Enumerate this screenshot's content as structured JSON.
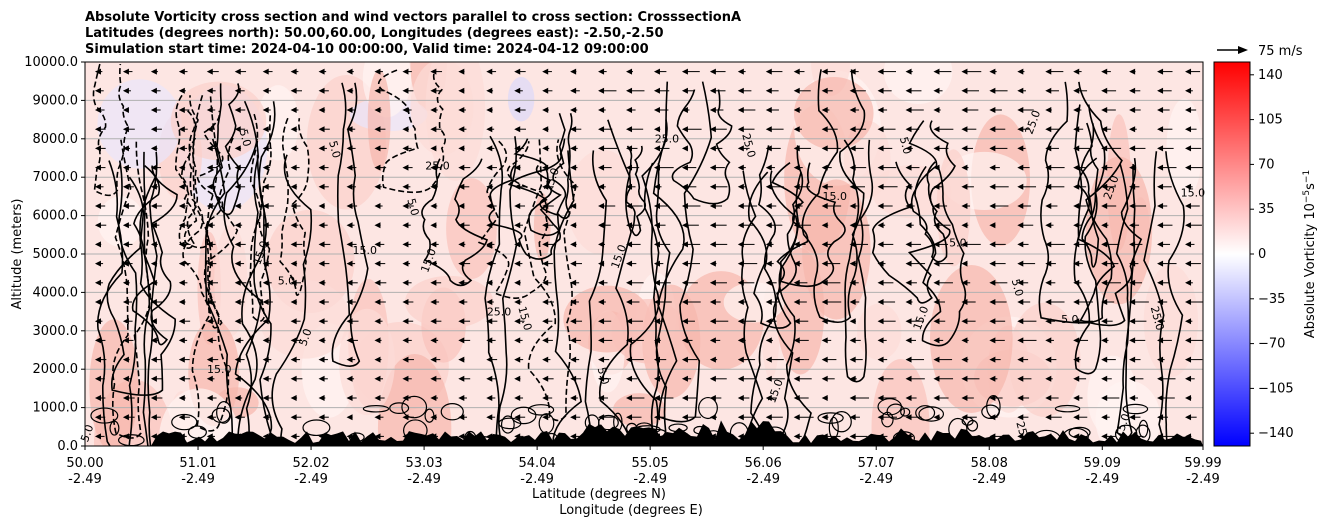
{
  "chart_data": {
    "type": "heatmap",
    "title_lines": [
      "Absolute Vorticity cross section and wind vectors parallel to cross section: CrosssectionA",
      "Latitudes (degrees north): 50.00,60.00, Longitudes (degrees east): -2.50,-2.50",
      "Simulation start time: 2024-04-10 00:00:00, Valid time: 2024-04-12 09:00:00"
    ],
    "ylabel": "Altitude (meters)",
    "xlabel_lat": "Latitude (degrees N)",
    "xlabel_lon": "Longitude (degrees E)",
    "y_range": [
      0,
      10000
    ],
    "y_ticks": [
      "0.0",
      "1000.0",
      "2000.0",
      "3000.0",
      "4000.0",
      "5000.0",
      "6000.0",
      "7000.0",
      "8000.0",
      "9000.0",
      "10000.0"
    ],
    "x_range": [
      50.0,
      59.99
    ],
    "x_ticks": [
      {
        "lat": "50.00",
        "lon": "-2.49"
      },
      {
        "lat": "51.01",
        "lon": "-2.49"
      },
      {
        "lat": "52.02",
        "lon": "-2.49"
      },
      {
        "lat": "53.03",
        "lon": "-2.49"
      },
      {
        "lat": "54.04",
        "lon": "-2.49"
      },
      {
        "lat": "55.05",
        "lon": "-2.49"
      },
      {
        "lat": "56.06",
        "lon": "-2.49"
      },
      {
        "lat": "57.07",
        "lon": "-2.49"
      },
      {
        "lat": "58.08",
        "lon": "-2.49"
      },
      {
        "lat": "59.09",
        "lon": "-2.49"
      },
      {
        "lat": "59.99",
        "lon": "-2.49"
      }
    ],
    "colorbar": {
      "label": "Absolute Vorticity 10$^{-5}$s$^{-1}$",
      "label_main": "Absolute Vorticity 10",
      "label_exp1": "−5",
      "label_mid": "s",
      "label_exp2": "−1",
      "ticks": [
        "−140",
        "−105",
        "−70",
        "−35",
        "0",
        "35",
        "70",
        "105",
        "140"
      ],
      "range": [
        -150,
        150
      ],
      "colors": {
        "min": "#0000ff",
        "mid": "#ffffff",
        "max": "#ff0000"
      }
    },
    "quiver_key": {
      "label": "75 m/s"
    },
    "contour_labels": [
      {
        "text": "5.0",
        "x": 50.05,
        "y": 300
      },
      {
        "text": "15.0",
        "x": 51.2,
        "y": 1900
      },
      {
        "text": "5.0",
        "x": 51.4,
        "y": 8000
      },
      {
        "text": "15.0",
        "x": 51.6,
        "y": 5000
      },
      {
        "text": "5.0",
        "x": 51.8,
        "y": 4200
      },
      {
        "text": "5.0",
        "x": 52.2,
        "y": 7700
      },
      {
        "text": "5.0",
        "x": 52.0,
        "y": 2800
      },
      {
        "text": "15.0",
        "x": 52.5,
        "y": 5000
      },
      {
        "text": "5.0",
        "x": 52.9,
        "y": 6200
      },
      {
        "text": "15.0",
        "x": 53.1,
        "y": 4800
      },
      {
        "text": "25.0",
        "x": 53.15,
        "y": 7200
      },
      {
        "text": "15.0",
        "x": 53.9,
        "y": 3300
      },
      {
        "text": "15.0",
        "x": 54.2,
        "y": 6900
      },
      {
        "text": "25.0",
        "x": 53.7,
        "y": 3400
      },
      {
        "text": "5.0",
        "x": 54.6,
        "y": 1800
      },
      {
        "text": "15.0",
        "x": 54.8,
        "y": 4900
      },
      {
        "text": "25.0",
        "x": 55.2,
        "y": 7900
      },
      {
        "text": "25.0",
        "x": 55.9,
        "y": 7800
      },
      {
        "text": "15.0",
        "x": 56.2,
        "y": 1400
      },
      {
        "text": "15.0",
        "x": 56.7,
        "y": 6400
      },
      {
        "text": "5.0",
        "x": 57.3,
        "y": 7800
      },
      {
        "text": "15.0",
        "x": 57.5,
        "y": 3300
      },
      {
        "text": "5.0",
        "x": 57.8,
        "y": 5200
      },
      {
        "text": "5.0",
        "x": 58.3,
        "y": 4100
      },
      {
        "text": "25.0",
        "x": 58.5,
        "y": 8400
      },
      {
        "text": "5.0",
        "x": 58.8,
        "y": 3200
      },
      {
        "text": "25.0",
        "x": 58.35,
        "y": 300
      },
      {
        "text": "25.0",
        "x": 59.2,
        "y": 6700
      },
      {
        "text": "15.0",
        "x": 59.9,
        "y": 6500
      },
      {
        "text": "25.0",
        "x": 59.55,
        "y": 3300
      },
      {
        "text": "15.0",
        "x": 59.3,
        "y": 500
      }
    ]
  }
}
